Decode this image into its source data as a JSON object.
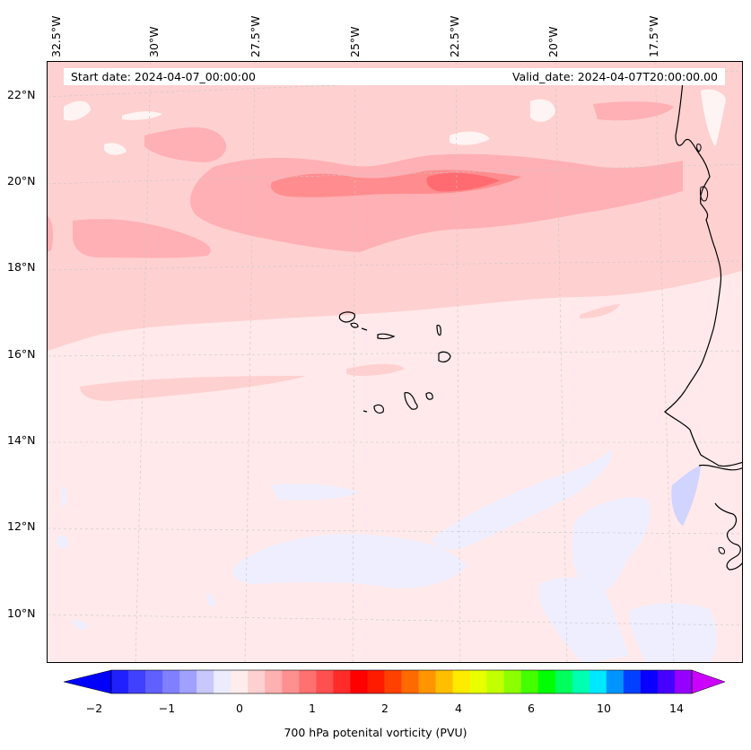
{
  "map": {
    "start_date": "Start date: 2024-04-07_00:00:00",
    "valid_date": "Valid_date: 2024-04-07T20:00:00.00",
    "lon_labels": [
      "32.5°W",
      "30°W",
      "27.5°W",
      "25°W",
      "22.5°W",
      "20°W",
      "17.5°W"
    ],
    "lat_labels": [
      "22°N",
      "20°N",
      "18°N",
      "16°N",
      "14°N",
      "12°N",
      "10°N"
    ],
    "field": "700 hPa potential vorticity",
    "region": "Cape Verde islands and West African coast"
  },
  "colorbar": {
    "title": "700 hPa potenital vorticity (PVU)",
    "tick_labels": [
      "−2",
      "−1",
      "0",
      "1",
      "2",
      "4",
      "6",
      "10",
      "14"
    ],
    "colors": [
      "#0000ff",
      "#2020ff",
      "#4040ff",
      "#6060ff",
      "#8080ff",
      "#a0a0ff",
      "#c8c8ff",
      "#ececff",
      "#ffecec",
      "#ffd0d0",
      "#ffb0b0",
      "#ff9090",
      "#ff7070",
      "#ff5050",
      "#ff2b2b",
      "#ff0000",
      "#ff1a00",
      "#ff4000",
      "#ff6a00",
      "#ff9500",
      "#ffbf00",
      "#ffea00",
      "#e8ff00",
      "#c2ff00",
      "#8cff00",
      "#44ff00",
      "#00ff00",
      "#00ff5a",
      "#00ffb0",
      "#00e8ff",
      "#0094ff",
      "#0040ff",
      "#0a00ff",
      "#4600ff",
      "#9600ff",
      "#d200ff"
    ]
  }
}
